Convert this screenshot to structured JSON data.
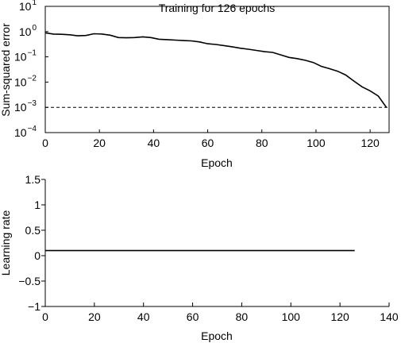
{
  "chart_data": [
    {
      "type": "line",
      "title": "Training for 126 epochs",
      "xlabel": "Epoch",
      "ylabel": "Sum-squared error",
      "xlim": [
        0,
        127
      ],
      "ylim": [
        0.0001,
        10
      ],
      "yscale": "log",
      "xticks": [
        0,
        20,
        40,
        60,
        80,
        100,
        120
      ],
      "yticks": [
        {
          "value": 10,
          "base": "10",
          "exp": "1"
        },
        {
          "value": 1,
          "base": "10",
          "exp": "0"
        },
        {
          "value": 0.1,
          "base": "10",
          "exp": "−1"
        },
        {
          "value": 0.01,
          "base": "10",
          "exp": "−2"
        },
        {
          "value": 0.001,
          "base": "10",
          "exp": "−3"
        },
        {
          "value": 0.0001,
          "base": "10",
          "exp": "−4"
        }
      ],
      "goal_line": 0.001,
      "grid": false,
      "line_color": "#000000",
      "series": [
        {
          "x": [
            0,
            3,
            6,
            9,
            12,
            15,
            18,
            21,
            24,
            27,
            30,
            33,
            36,
            39,
            42,
            45,
            48,
            51,
            54,
            57,
            60,
            63,
            66,
            69,
            72,
            75,
            78,
            81,
            84,
            87,
            90,
            93,
            96,
            99,
            102,
            105,
            108,
            111,
            114,
            117,
            120,
            123,
            126
          ],
          "y": [
            0.9,
            0.8,
            0.78,
            0.75,
            0.68,
            0.7,
            0.82,
            0.8,
            0.72,
            0.58,
            0.57,
            0.58,
            0.62,
            0.58,
            0.5,
            0.48,
            0.46,
            0.44,
            0.43,
            0.39,
            0.33,
            0.31,
            0.28,
            0.25,
            0.22,
            0.2,
            0.18,
            0.16,
            0.15,
            0.12,
            0.095,
            0.085,
            0.073,
            0.06,
            0.042,
            0.034,
            0.027,
            0.019,
            0.011,
            0.0065,
            0.0045,
            0.0028,
            0.001
          ]
        }
      ]
    },
    {
      "type": "line",
      "title": "",
      "xlabel": "Epoch",
      "ylabel": "Learning rate",
      "xlim": [
        0,
        140
      ],
      "ylim": [
        -1,
        1.5
      ],
      "xticks": [
        0,
        20,
        40,
        60,
        80,
        100,
        120,
        140
      ],
      "yticks": [
        {
          "value": 1.5,
          "label": "1.5"
        },
        {
          "value": 1,
          "label": "1"
        },
        {
          "value": 0.5,
          "label": "0.5"
        },
        {
          "value": 0,
          "label": "0"
        },
        {
          "value": -0.5,
          "label": "−0.5"
        },
        {
          "value": -1,
          "label": "−1"
        }
      ],
      "grid": false,
      "line_color": "#000000",
      "series": [
        {
          "x": [
            0,
            126
          ],
          "y": [
            0.1,
            0.1
          ]
        }
      ]
    }
  ]
}
